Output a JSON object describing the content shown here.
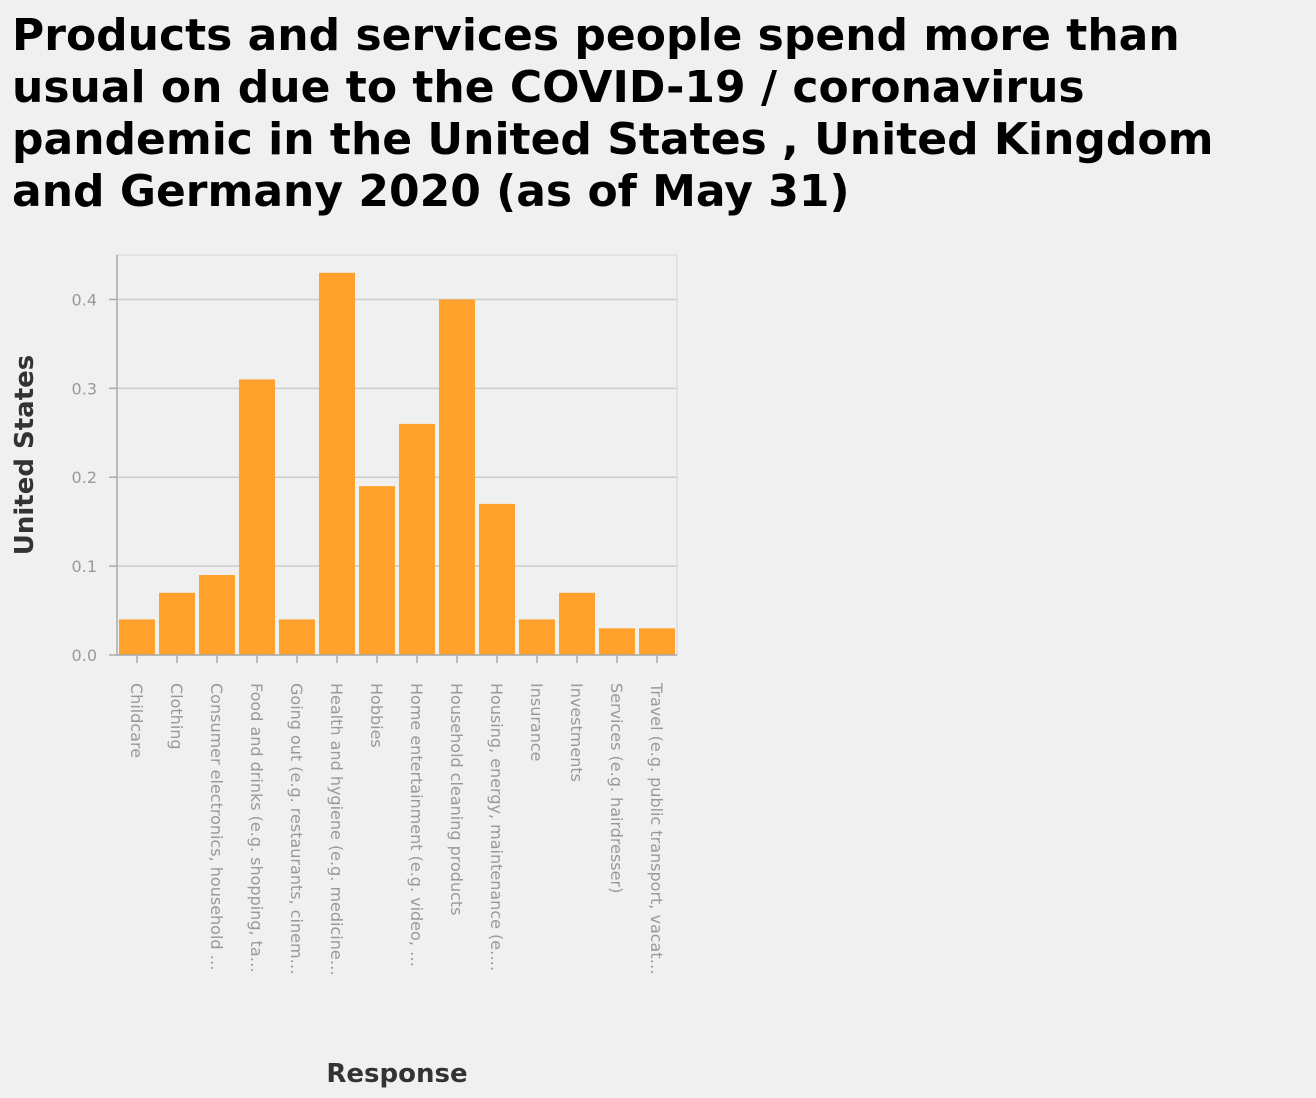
{
  "chart_data": {
    "type": "bar",
    "title": "Products and services people spend more than usual on due to the COVID-19 / coronavirus pandemic in the United States , United Kingdom and Germany 2020 (as of May 31)",
    "xlabel": "Response",
    "ylabel": "United States",
    "ylim": [
      0,
      0.45
    ],
    "yticks": [
      0.0,
      0.1,
      0.2,
      0.3,
      0.4
    ],
    "ytick_labels": [
      "0.0",
      "0.1",
      "0.2",
      "0.3",
      "0.4"
    ],
    "grid": true,
    "categories": [
      "Childcare",
      "Clothing",
      "Consumer electronics, household …",
      "Food and drinks (e.g. shopping, ta…",
      "Going out (e.g. restaurants, cinem…",
      "Health and hygiene (e.g. medicine…",
      "Hobbies",
      "Home entertainment (e.g. video, …",
      "Household cleaning products",
      "Housing, energy, maintenance (e.…",
      "Insurance",
      "Investments",
      "Services (e.g. hairdresser)",
      "Travel (e.g. public transport, vacat…"
    ],
    "values": [
      0.04,
      0.07,
      0.09,
      0.31,
      0.04,
      0.43,
      0.19,
      0.26,
      0.4,
      0.17,
      0.04,
      0.07,
      0.03,
      0.03
    ],
    "bar_color": "#ffa12b",
    "grid_color": "#cccccc",
    "axis_color": "#aaaaaa"
  }
}
